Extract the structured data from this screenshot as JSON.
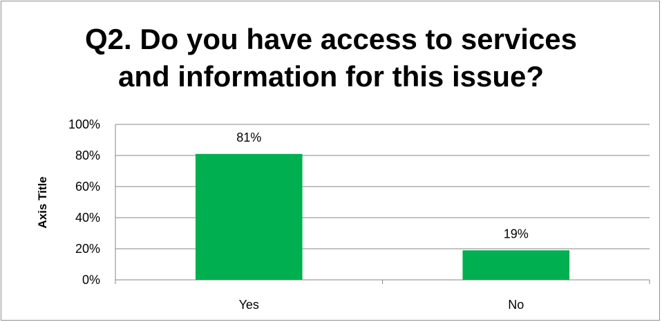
{
  "chart_data": {
    "type": "bar",
    "title_lines": [
      "Q2. Do you have access to services",
      "and information for this issue?"
    ],
    "ylabel": "Axis Title",
    "xlabel": "",
    "categories": [
      "Yes",
      "No"
    ],
    "values": [
      81,
      19
    ],
    "data_labels": [
      "81%",
      "19%"
    ],
    "ylim": [
      0,
      100
    ],
    "yticks": [
      0,
      20,
      40,
      60,
      80,
      100
    ],
    "ytick_labels": [
      "0%",
      "20%",
      "40%",
      "60%",
      "80%",
      "100%"
    ],
    "bar_color": "#00b050",
    "grid": true,
    "legend": "none"
  }
}
